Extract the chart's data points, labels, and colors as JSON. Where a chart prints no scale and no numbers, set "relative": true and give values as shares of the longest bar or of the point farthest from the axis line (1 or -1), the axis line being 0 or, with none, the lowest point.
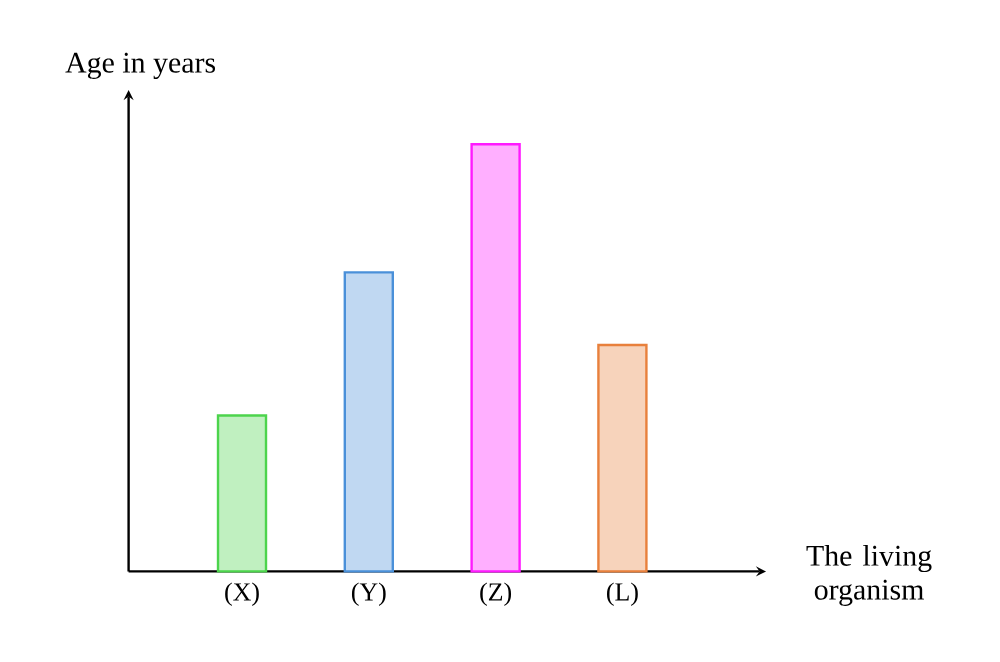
{
  "chart_data": {
    "type": "bar",
    "relative": true,
    "ylabel": "Age in years",
    "xlabel": "The living organism",
    "categories": [
      "(X)",
      "(Y)",
      "(Z)",
      "(L)"
    ],
    "values": [
      0.365,
      0.7,
      1,
      0.53
    ],
    "colors": [
      "#4cd44c",
      "#4a90d9",
      "#ff1aff",
      "#e8803c"
    ]
  }
}
